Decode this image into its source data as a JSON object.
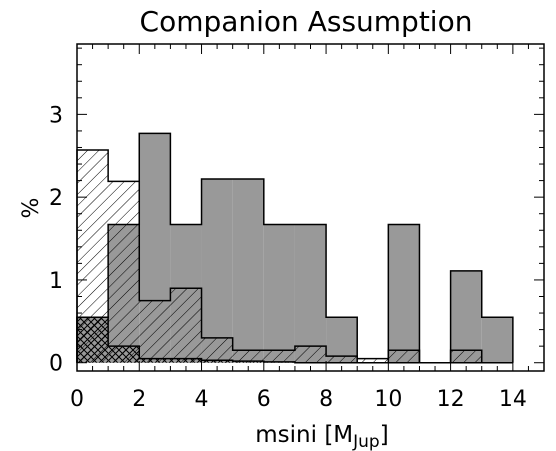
{
  "chart_data": {
    "type": "bar",
    "title": "Companion Assumption",
    "xlabel": "msini [M",
    "xlabel_sub": "Jup",
    "xlabel_end": "]",
    "ylabel": "%",
    "xlim": [
      0,
      15
    ],
    "ylim": [
      -0.1,
      3.85
    ],
    "xticks": [
      0,
      2,
      4,
      6,
      8,
      10,
      12,
      14
    ],
    "xtick_labels": [
      "0",
      "2",
      "4",
      "6",
      "8",
      "10",
      "12",
      "14"
    ],
    "yticks": [
      0,
      1,
      2,
      3
    ],
    "ytick_labels": [
      "0",
      "1",
      "2",
      "3"
    ],
    "bin_width": 1,
    "colors": {
      "filled": "#999999",
      "line": "#000000",
      "background": "#ffffff"
    },
    "series": [
      {
        "style": "gray-filled",
        "bin_starts": [
          0,
          1,
          2,
          3,
          4,
          5,
          6,
          7,
          8,
          9,
          10,
          11,
          12,
          13
        ],
        "values": [
          0.55,
          1.67,
          2.77,
          1.67,
          2.22,
          2.22,
          1.67,
          1.67,
          0.55,
          0.0,
          1.67,
          0.0,
          1.11,
          0.55
        ]
      },
      {
        "style": "hatched-single",
        "bin_starts": [
          0,
          1,
          2,
          3,
          4,
          5,
          6,
          7,
          8,
          9,
          10,
          11,
          12,
          13
        ],
        "values": [
          2.57,
          2.19,
          0.75,
          0.9,
          0.3,
          0.15,
          0.15,
          0.2,
          0.08,
          0.05,
          0.15,
          0.0,
          0.15,
          0.0
        ]
      },
      {
        "style": "cross-hatched",
        "bin_starts": [
          0,
          1,
          2,
          3,
          4,
          5,
          6,
          7,
          8,
          9,
          10,
          11,
          12,
          13
        ],
        "values": [
          0.55,
          0.2,
          0.05,
          0.05,
          0.03,
          0.02,
          0.01,
          0.0,
          0.0,
          0.0,
          0.0,
          0.0,
          0.0,
          0.0
        ]
      }
    ]
  }
}
